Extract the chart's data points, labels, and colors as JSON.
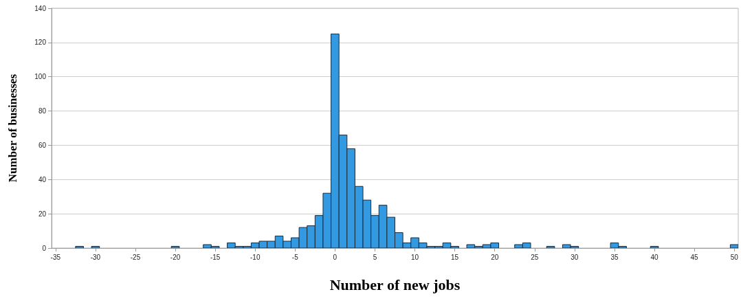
{
  "chart_data": {
    "type": "histogram",
    "xlabel": "Number of new jobs",
    "ylabel": "Number of businesses",
    "color": "#3399e0",
    "bins": [
      -35.5,
      -34.5,
      -33.5,
      -32.5,
      -31.5,
      -30.5,
      -29.5,
      -28.5,
      -27.5,
      -26.5,
      -25.5,
      -24.5,
      -23.5,
      -22.5,
      -21.5,
      -20.5,
      -19.5,
      -18.5,
      -17.5,
      -16.5,
      -15.5,
      -14.5,
      -13.5,
      -12.5,
      -11.5,
      -10.5,
      -9.5,
      -8.5,
      -7.5,
      -6.5,
      -5.5,
      -4.5,
      -3.5,
      -2.5,
      -1.5,
      -0.5,
      0.5,
      1.5,
      2.5,
      3.5,
      4.5,
      5.5,
      6.5,
      7.5,
      8.5,
      9.5,
      10.5,
      11.5,
      12.5,
      13.5,
      14.5,
      15.5,
      16.5,
      17.5,
      18.5,
      19.5,
      20.5,
      21.5,
      22.5,
      23.5,
      24.5,
      25.5,
      26.5,
      27.5,
      28.5,
      29.5,
      30.5,
      31.5,
      32.5,
      33.5,
      34.5,
      35.5,
      36.5,
      37.5,
      38.5,
      39.5,
      40.5,
      41.5,
      42.5,
      43.5,
      44.5,
      45.5,
      46.5,
      47.5,
      48.5,
      49.5,
      50.5
    ],
    "values": [
      0,
      0,
      0,
      1,
      0,
      1,
      0,
      0,
      0,
      0,
      0,
      0,
      0,
      0,
      0,
      1,
      0,
      0,
      0,
      2,
      1,
      0,
      3,
      1,
      1,
      3,
      4,
      4,
      7,
      4,
      6,
      12,
      13,
      19,
      32,
      125,
      66,
      58,
      36,
      28,
      19,
      25,
      18,
      9,
      3,
      6,
      3,
      1,
      1,
      3,
      1,
      0,
      2,
      1,
      2,
      3,
      0,
      0,
      2,
      3,
      0,
      0,
      1,
      0,
      2,
      1,
      0,
      0,
      0,
      0,
      3,
      1,
      0,
      0,
      0,
      1,
      0,
      0,
      0,
      0,
      0,
      0,
      0,
      0,
      0,
      2
    ],
    "xlim": [
      -35.5,
      50.5
    ],
    "xticks": [
      -35,
      -30,
      -25,
      -20,
      -15,
      -10,
      -5,
      0,
      5,
      10,
      15,
      20,
      25,
      30,
      35,
      40,
      45,
      50
    ],
    "ylim": [
      0,
      140
    ],
    "yticks": [
      0,
      20,
      40,
      60,
      80,
      100,
      120,
      140
    ],
    "grid": "y"
  }
}
